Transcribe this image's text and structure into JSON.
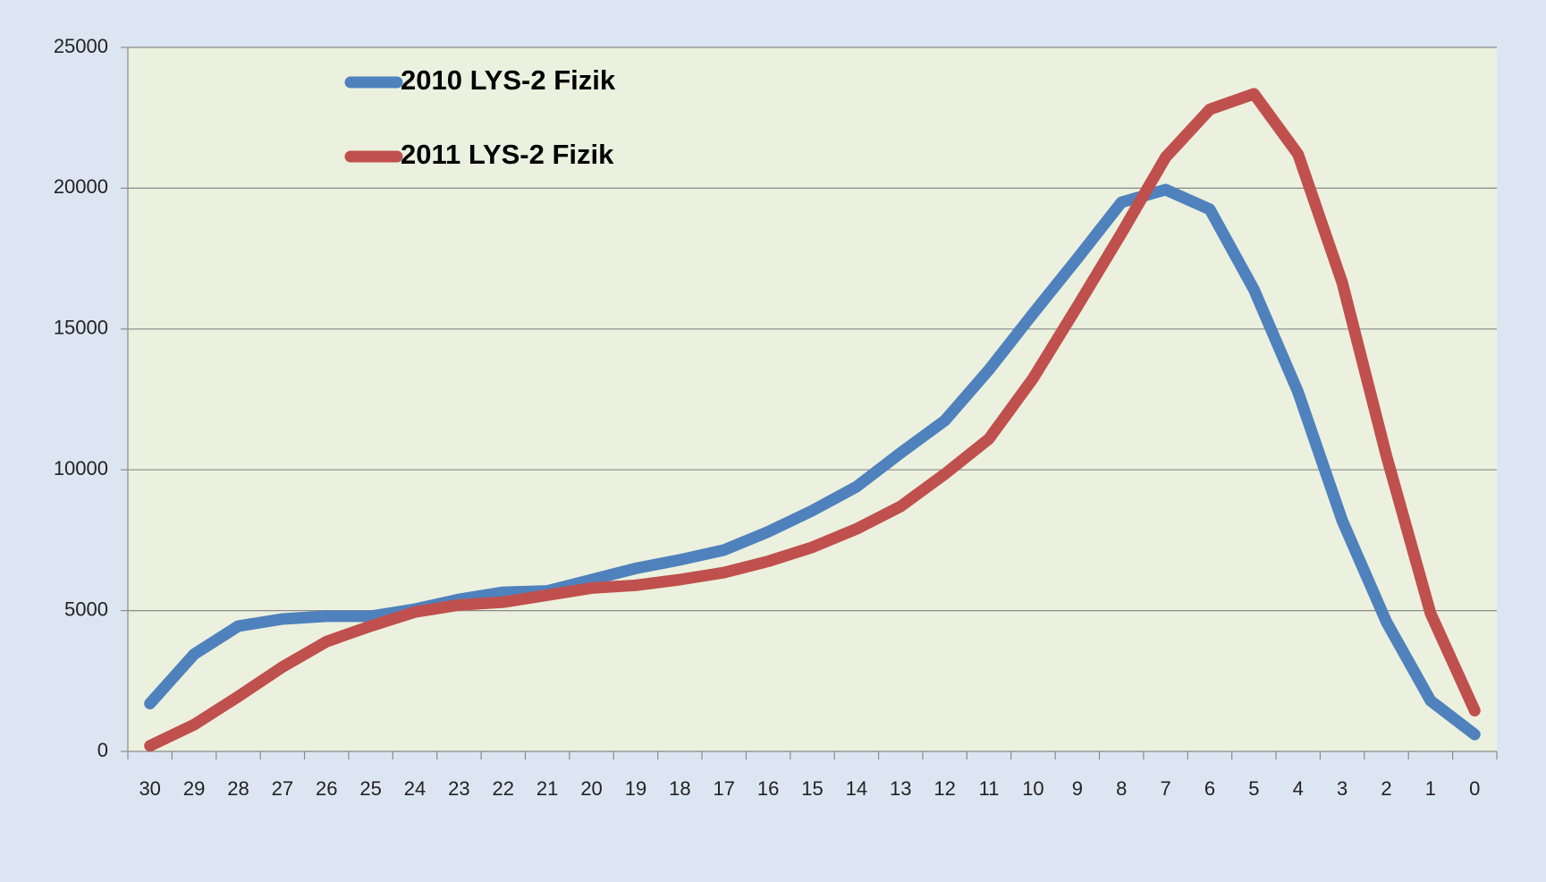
{
  "chart_data": {
    "type": "line",
    "categories": [
      "30",
      "29",
      "28",
      "27",
      "26",
      "25",
      "24",
      "23",
      "22",
      "21",
      "20",
      "19",
      "18",
      "17",
      "16",
      "15",
      "14",
      "13",
      "12",
      "11",
      "10",
      "9",
      "8",
      "7",
      "6",
      "5",
      "4",
      "3",
      "2",
      "1",
      "0"
    ],
    "series": [
      {
        "name": "2010 LYS-2 Fizik",
        "color": "#4f81bd",
        "values": [
          1700,
          3450,
          4450,
          4700,
          4800,
          4800,
          5050,
          5400,
          5650,
          5700,
          6100,
          6500,
          6800,
          7150,
          7800,
          8550,
          9400,
          10600,
          11750,
          13550,
          15550,
          17500,
          19500,
          19950,
          19250,
          16400,
          12750,
          8200,
          4600,
          1800,
          600
        ]
      },
      {
        "name": "2011 LYS-2 Fizik",
        "color": "#c0504d",
        "values": [
          200,
          950,
          1950,
          3000,
          3900,
          4450,
          4950,
          5200,
          5300,
          5550,
          5800,
          5900,
          6100,
          6350,
          6750,
          7250,
          7900,
          8700,
          9850,
          11100,
          13250,
          15800,
          18400,
          21100,
          22800,
          23350,
          21200,
          16650,
          10500,
          4900,
          1450
        ]
      }
    ],
    "ylim": [
      0,
      25000
    ],
    "yticks": [
      0,
      5000,
      10000,
      15000,
      20000,
      25000
    ],
    "grid": true,
    "legend": "top-left"
  }
}
